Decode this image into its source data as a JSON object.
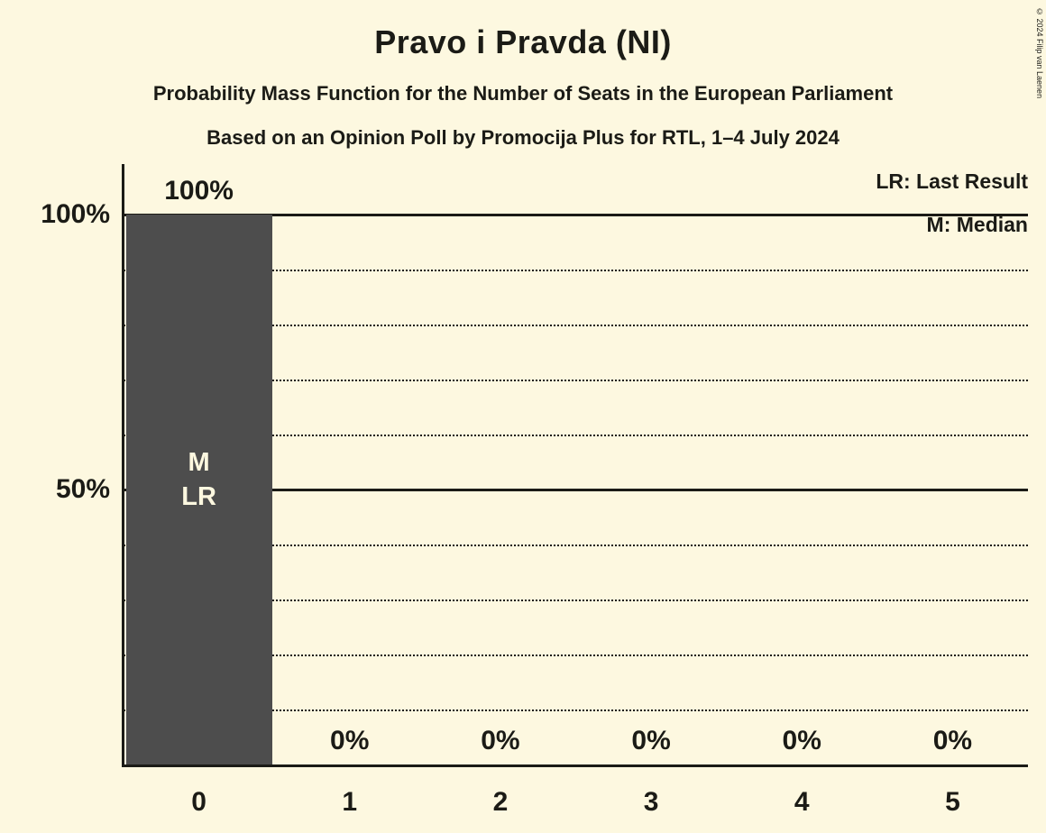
{
  "title": "Pravo i Pravda (NI)",
  "subtitle1": "Probability Mass Function for the Number of Seats in the European Parliament",
  "subtitle2": "Based on an Opinion Poll by Promocija Plus for RTL, 1–4 July 2024",
  "legend": {
    "lr": "LR: Last Result",
    "m": "M: Median"
  },
  "copyright": "© 2024 Filip van Laenen",
  "colors": {
    "background": "#FDF8E0",
    "bar": "#4D4D4D",
    "text": "#1B1B16",
    "bar_label": "#FDF8E0"
  },
  "chart_data": {
    "type": "bar",
    "categories": [
      "0",
      "1",
      "2",
      "3",
      "4",
      "5"
    ],
    "values": [
      100,
      0,
      0,
      0,
      0,
      0
    ],
    "value_labels": [
      "100%",
      "0%",
      "0%",
      "0%",
      "0%",
      "0%"
    ],
    "bar_annotations": [
      [
        "M",
        "LR"
      ],
      [],
      [],
      [],
      [],
      []
    ],
    "title": "Pravo i Pravda (NI)",
    "xlabel": "",
    "ylabel": "",
    "ylim": [
      0,
      100
    ],
    "yticks": [
      {
        "value": 100,
        "label": "100%"
      },
      {
        "value": 50,
        "label": "50%"
      }
    ],
    "solid_gridlines": [
      100,
      50
    ],
    "dotted_gridlines": [
      90,
      80,
      70,
      60,
      40,
      30,
      20,
      10
    ],
    "grid": true,
    "legend_position": "top-right"
  }
}
